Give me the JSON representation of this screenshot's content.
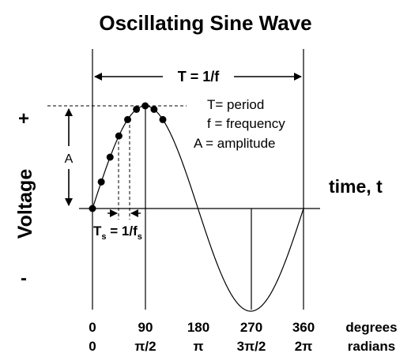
{
  "title": "Oscillating Sine Wave",
  "period_label": "T = 1/f",
  "legend": {
    "period": "T= period",
    "frequency": "f = frequency",
    "amplitude": "A = amplitude"
  },
  "amplitude_label": "A",
  "y_axis_label": "Voltage",
  "y_plus": "+",
  "y_minus": "-",
  "x_axis_label": "time, t",
  "sampling": {
    "T": "T",
    "sub_s": "s",
    "eq": " = 1/f",
    "sub_s2": "s"
  },
  "ticks_degrees": [
    "0",
    "90",
    "180",
    "270",
    "360"
  ],
  "ticks_radians": [
    "0",
    "π/2",
    "π",
    "3π/2",
    "2π"
  ],
  "row_label_degrees": "degrees",
  "row_label_radians": "radians",
  "sample_points_degrees": [
    0,
    15,
    30,
    45,
    60,
    75,
    90,
    105,
    120
  ],
  "colors": {
    "ink": "#000000"
  }
}
